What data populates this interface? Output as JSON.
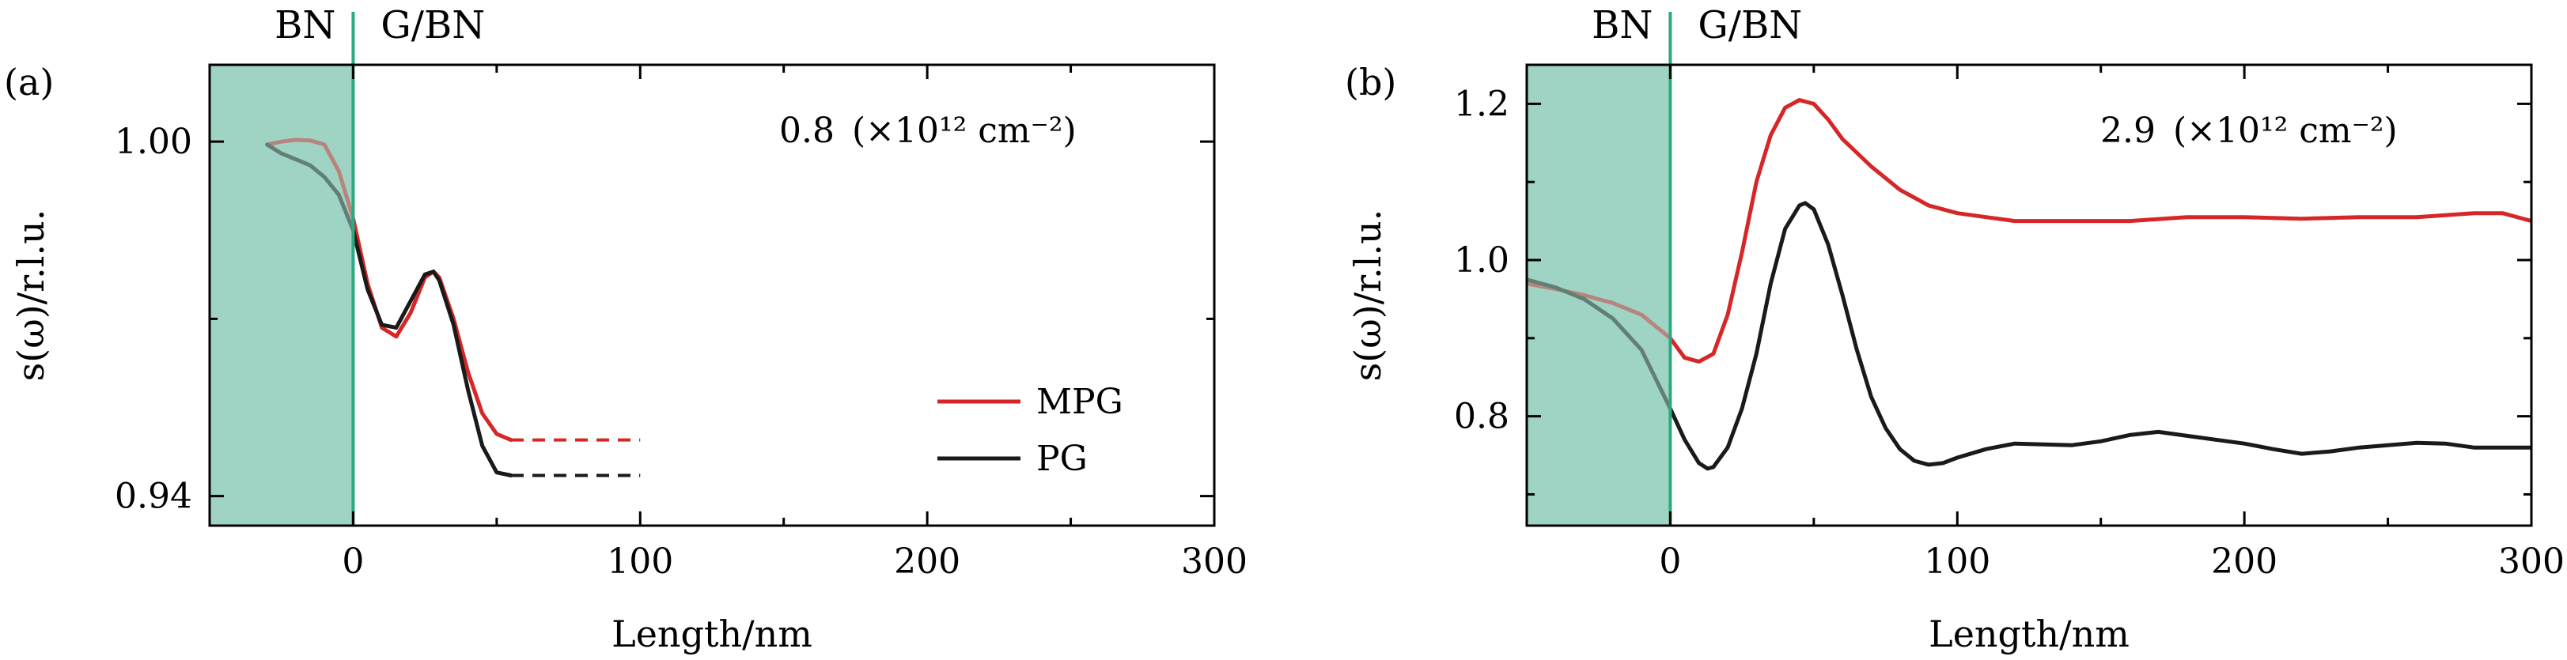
{
  "region_color": "#9fd3c3",
  "boundary_color": "#2ca883",
  "series_colors": {
    "MPG": "#d62728",
    "PG": "#1a1a1a"
  },
  "chart_data": [
    {
      "type": "line",
      "panel_label": "(a)",
      "annotation": {
        "value": "0.8",
        "unit_html": "(×10¹² cm⁻²)"
      },
      "xlabel": "Length/nm",
      "ylabel": "s(ω)/r.l.u.",
      "xlim": [
        -50,
        300
      ],
      "ylim": [
        0.935,
        1.013
      ],
      "xticks": [
        0,
        100,
        200,
        300
      ],
      "xtick_labels": [
        "0",
        "100",
        "200",
        "300"
      ],
      "yticks": [
        0.94,
        1.0
      ],
      "ytick_labels": [
        "0.94",
        "1.00"
      ],
      "minor_xticks": [
        50,
        150,
        250
      ],
      "minor_yticks": [
        0.97
      ],
      "regions": [
        {
          "label": "BN",
          "x": [
            -50,
            0
          ]
        },
        {
          "label": "G/BN",
          "x": [
            0,
            300
          ]
        }
      ],
      "legend": {
        "placement": "lower-right",
        "entries": [
          "MPG",
          "PG"
        ]
      },
      "series": [
        {
          "name": "MPG",
          "x": [
            -30,
            -25,
            -20,
            -15,
            -10,
            -5,
            0,
            5,
            10,
            15,
            20,
            25,
            28,
            30,
            35,
            40,
            45,
            50,
            55
          ],
          "y": [
            0.9995,
            1.0,
            1.0003,
            1.0002,
            0.9995,
            0.995,
            0.987,
            0.976,
            0.9685,
            0.967,
            0.971,
            0.977,
            0.978,
            0.977,
            0.97,
            0.961,
            0.954,
            0.9505,
            0.9495
          ],
          "dashed_extension": {
            "x": [
              55,
              100
            ],
            "y": 0.9495
          }
        },
        {
          "name": "PG",
          "x": [
            -30,
            -25,
            -20,
            -15,
            -10,
            -5,
            0,
            5,
            10,
            15,
            20,
            25,
            28,
            30,
            35,
            40,
            45,
            50,
            55
          ],
          "y": [
            0.9995,
            0.998,
            0.997,
            0.996,
            0.994,
            0.991,
            0.985,
            0.975,
            0.969,
            0.9685,
            0.973,
            0.9775,
            0.978,
            0.9765,
            0.969,
            0.958,
            0.9485,
            0.944,
            0.9435
          ],
          "dashed_extension": {
            "x": [
              55,
              100
            ],
            "y": 0.9435
          }
        }
      ]
    },
    {
      "type": "line",
      "panel_label": "(b)",
      "annotation": {
        "value": "2.9",
        "unit_html": "(×10¹² cm⁻²)"
      },
      "xlabel": "Length/nm",
      "ylabel": "s(ω)/r.l.u.",
      "xlim": [
        -50,
        300
      ],
      "ylim": [
        0.66,
        1.25
      ],
      "xticks": [
        0,
        100,
        200,
        300
      ],
      "xtick_labels": [
        "0",
        "100",
        "200",
        "300"
      ],
      "yticks": [
        0.8,
        1.0,
        1.2
      ],
      "ytick_labels": [
        "0.8",
        "1.0",
        "1.2"
      ],
      "minor_xticks": [
        50,
        150,
        250
      ],
      "minor_yticks": [
        0.7,
        0.9,
        1.1
      ],
      "regions": [
        {
          "label": "BN",
          "x": [
            -50,
            0
          ]
        },
        {
          "label": "G/BN",
          "x": [
            0,
            300
          ]
        }
      ],
      "series": [
        {
          "name": "MPG",
          "x": [
            -50,
            -40,
            -30,
            -20,
            -10,
            0,
            5,
            10,
            15,
            20,
            25,
            30,
            35,
            40,
            45,
            50,
            55,
            60,
            70,
            80,
            90,
            100,
            110,
            120,
            140,
            160,
            180,
            200,
            220,
            240,
            260,
            280,
            290,
            300
          ],
          "y": [
            0.97,
            0.963,
            0.955,
            0.945,
            0.93,
            0.9,
            0.875,
            0.87,
            0.88,
            0.93,
            1.01,
            1.1,
            1.16,
            1.195,
            1.205,
            1.2,
            1.18,
            1.155,
            1.12,
            1.09,
            1.07,
            1.06,
            1.055,
            1.05,
            1.05,
            1.05,
            1.055,
            1.055,
            1.053,
            1.055,
            1.055,
            1.06,
            1.06,
            1.05
          ]
        },
        {
          "name": "PG",
          "x": [
            -50,
            -40,
            -30,
            -20,
            -10,
            0,
            5,
            10,
            13,
            15,
            20,
            25,
            30,
            35,
            40,
            45,
            47,
            50,
            55,
            60,
            65,
            70,
            75,
            80,
            85,
            90,
            95,
            100,
            110,
            120,
            140,
            150,
            160,
            170,
            180,
            190,
            200,
            210,
            220,
            230,
            240,
            250,
            260,
            270,
            280,
            290,
            300
          ],
          "y": [
            0.975,
            0.965,
            0.95,
            0.925,
            0.885,
            0.81,
            0.77,
            0.74,
            0.733,
            0.735,
            0.76,
            0.81,
            0.88,
            0.97,
            1.04,
            1.07,
            1.073,
            1.065,
            1.02,
            0.955,
            0.885,
            0.825,
            0.785,
            0.758,
            0.743,
            0.738,
            0.74,
            0.747,
            0.758,
            0.765,
            0.763,
            0.768,
            0.776,
            0.78,
            0.775,
            0.77,
            0.765,
            0.758,
            0.752,
            0.755,
            0.76,
            0.763,
            0.766,
            0.765,
            0.76,
            0.76,
            0.76
          ]
        }
      ]
    }
  ]
}
